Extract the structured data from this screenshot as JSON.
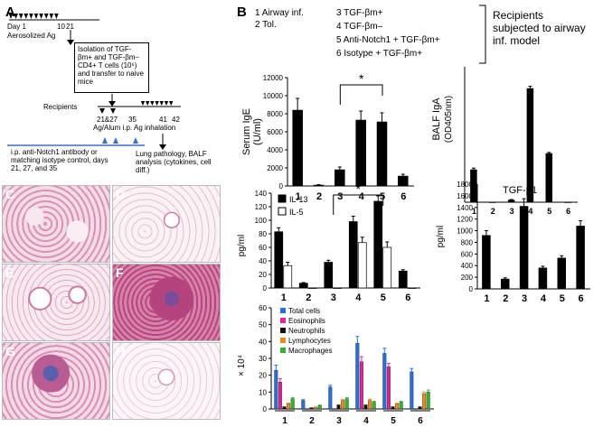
{
  "panelA": {
    "letter": "A",
    "day1": "Day 1",
    "day10": "10",
    "day21": "21",
    "aerosol": "Aerosolized Ag",
    "isolation": "Isolation of TGF-βm+ and TGF-βm– CD4+ T cells (10⁶) and transfer to naive mice",
    "recipients": "Recipients",
    "days_2127": "21&27",
    "day35": "35",
    "ag_alum": "Ag/Alum i.p.",
    "day41": "41",
    "day42": "42",
    "ag_inh": "Ag inhalation",
    "antibody_note": "i.p. anti-Notch1 antibody or matching isotype control, days 21, 27, and 35",
    "lung_note": "Lung pathology, BALF analysis (cytokines, cell diff.)"
  },
  "panelB": {
    "letter": "B",
    "groups": [
      "1 Airway inf.",
      "2 Tol.",
      "3 TGF-βm+",
      "4 TGF-βm–",
      "5 Anti-Notch1 + TGF-βm+",
      "6 Isotype + TGF-βm+"
    ],
    "recipients_note": "Recipients subjected to airway inf. model"
  },
  "photos": [
    "C",
    "D",
    "E",
    "F",
    "G",
    "H"
  ],
  "colors": {
    "bar_black": "#000000",
    "bar_white": "#ffffff",
    "total_cells": "#2b6fd6",
    "eosinophils": "#e0249a",
    "neutrophils": "#111111",
    "lymphocytes": "#f08a1c",
    "macrophages": "#36b034",
    "timeline_blue": "#3a6fd0"
  },
  "chart_data": [
    {
      "id": "ige",
      "type": "bar",
      "categories": [
        "1",
        "2",
        "3",
        "4",
        "5",
        "6"
      ],
      "values": [
        8400,
        100,
        1800,
        7300,
        7100,
        1100
      ],
      "errors": [
        1300,
        50,
        300,
        1000,
        1000,
        200
      ],
      "ylim": [
        0,
        12000
      ],
      "yticks": [
        "0",
        "2000",
        "4000",
        "6000",
        "8000",
        "10000",
        "12000"
      ],
      "ylabel": "Serum IgE",
      "ylabel_unit": "(U/ml)",
      "significance": {
        "from": "3",
        "to": "5",
        "mark": "*"
      }
    },
    {
      "id": "iga",
      "type": "bar",
      "categories": [
        "1",
        "2",
        "3",
        "4",
        "5",
        "6"
      ],
      "values": [
        0.6,
        0.0,
        0.04,
        2.1,
        0.9,
        0.0
      ],
      "errors": [
        0.03,
        0.0,
        0.01,
        0.04,
        0.02,
        0.0
      ],
      "ylim": [
        0,
        2.5
      ],
      "ylabel": "BALF IgA",
      "ylabel_unit": "(OD405nm)"
    },
    {
      "id": "il",
      "type": "bar",
      "categories": [
        "1",
        "2",
        "3",
        "4",
        "5",
        "6"
      ],
      "series": [
        {
          "name": "IL-13",
          "values": [
            83,
            7,
            38,
            98,
            128,
            25
          ],
          "errors": [
            6,
            1,
            3,
            8,
            8,
            2
          ]
        },
        {
          "name": "IL-5",
          "values": [
            33,
            0,
            0,
            67,
            60,
            0
          ],
          "errors": [
            5,
            0,
            0,
            8,
            8,
            0
          ]
        }
      ],
      "ylim": [
        0,
        140
      ],
      "yticks": [
        "0",
        "20",
        "40",
        "60",
        "80",
        "100",
        "120",
        "140"
      ],
      "ylabel": "pg/ml",
      "significance": {
        "from": "3",
        "to": "5",
        "mark": "*"
      }
    },
    {
      "id": "tgf",
      "type": "bar",
      "categories": [
        "1",
        "2",
        "3",
        "4",
        "5",
        "6"
      ],
      "values": [
        920,
        170,
        1420,
        360,
        530,
        1080
      ],
      "errors": [
        80,
        20,
        130,
        30,
        40,
        90
      ],
      "ylim": [
        0,
        1800
      ],
      "yticks": [
        "0",
        "200",
        "400",
        "600",
        "800",
        "1000",
        "1200",
        "1400",
        "1600",
        "1800"
      ],
      "ylabel": "pg/ml",
      "title": "TGF-β1"
    },
    {
      "id": "cells",
      "type": "bar",
      "categories": [
        "1",
        "2",
        "3",
        "4",
        "5",
        "6"
      ],
      "series": [
        {
          "name": "Total cells",
          "values": [
            23,
            5,
            13,
            39,
            33,
            22
          ],
          "errors": [
            3,
            0.5,
            1,
            4,
            3,
            2
          ]
        },
        {
          "name": "Eosinophils",
          "values": [
            16,
            0,
            0,
            28,
            25,
            0
          ],
          "errors": [
            2,
            0,
            0,
            3,
            2,
            0
          ]
        },
        {
          "name": "Neutrophils",
          "values": [
            1,
            0.5,
            2,
            2,
            1,
            1
          ],
          "errors": [
            0.2,
            0.1,
            0.3,
            0.3,
            0.2,
            0.2
          ]
        },
        {
          "name": "Lymphocytes",
          "values": [
            3,
            1,
            5,
            5,
            3,
            9
          ],
          "errors": [
            0.5,
            0.2,
            0.5,
            0.6,
            0.4,
            1
          ]
        },
        {
          "name": "Macrophages",
          "values": [
            6,
            2,
            6,
            4,
            4,
            10
          ],
          "errors": [
            0.6,
            0.3,
            0.6,
            0.5,
            0.5,
            1.2
          ]
        }
      ],
      "ylim": [
        0,
        60
      ],
      "yticks": [
        "0",
        "10",
        "20",
        "30",
        "40",
        "50",
        "60"
      ],
      "ylabel": "× 10⁴"
    }
  ]
}
